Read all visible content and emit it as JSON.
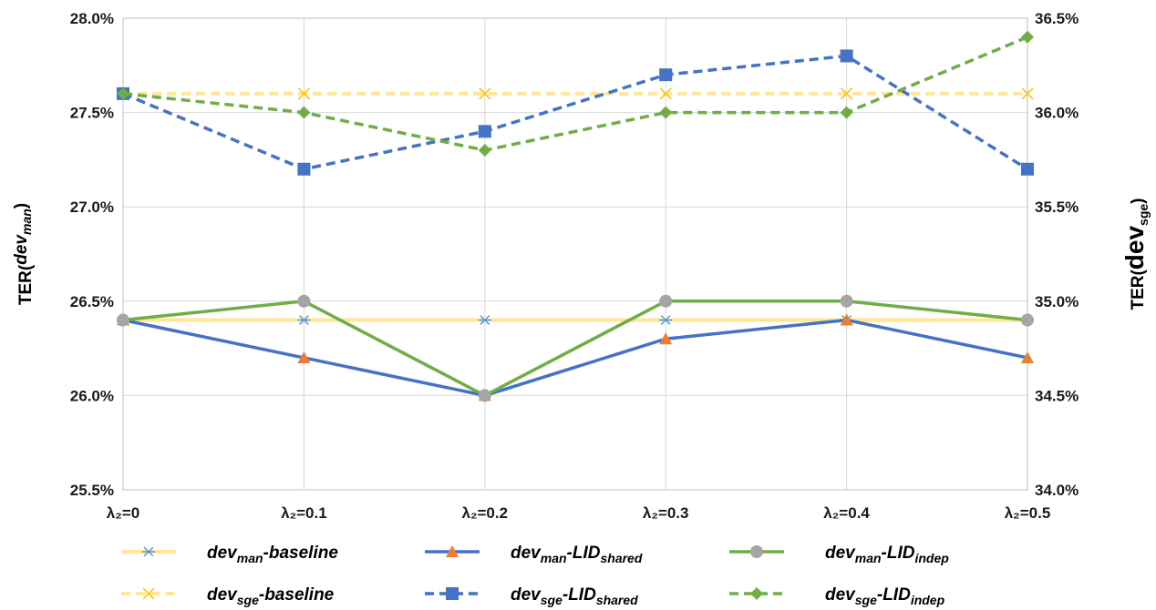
{
  "chart_data": {
    "type": "line",
    "categories": [
      "λ₂=0",
      "λ₂=0.1",
      "λ₂=0.2",
      "λ₂=0.3",
      "λ₂=0.4",
      "λ₂=0.5"
    ],
    "y_left": {
      "title": "TER(dev_man)",
      "title_parts": [
        {
          "t": "TER(",
          "sub": false,
          "italic": false
        },
        {
          "t": "dev",
          "sub": false,
          "italic": true
        },
        {
          "t": "man",
          "sub": true,
          "italic": true
        },
        {
          "t": ")",
          "sub": false,
          "italic": false
        }
      ],
      "ylim": [
        25.5,
        28.0
      ],
      "ticks": [
        "25.5%",
        "26.0%",
        "26.5%",
        "27.0%",
        "27.5%",
        "28.0%"
      ]
    },
    "y_right": {
      "title": "TER(dev_sge)",
      "title_parts": [
        {
          "t": "TER(",
          "sub": false,
          "big": false
        },
        {
          "t": "dev",
          "sub": false,
          "big": true
        },
        {
          "t": "sge",
          "sub": true,
          "big": false
        },
        {
          "t": ")",
          "sub": false,
          "big": false
        }
      ],
      "ylim": [
        34.0,
        36.5
      ],
      "ticks": [
        "34.0%",
        "34.5%",
        "35.0%",
        "35.5%",
        "36.0%",
        "36.5%"
      ]
    },
    "grid": true,
    "legend_position": "bottom",
    "series": [
      {
        "name": "dev_man-baseline",
        "label_parts": [
          "dev",
          "man",
          "-baseline",
          ""
        ],
        "axis": "left",
        "values": [
          26.4,
          26.4,
          26.4,
          26.4,
          26.4,
          26.4
        ],
        "color": "#FFE699",
        "marker": "asterisk",
        "marker_color": "#5B9BD5",
        "dashed": false
      },
      {
        "name": "dev_man-LID_shared",
        "label_parts": [
          "dev",
          "man",
          "-LID",
          "shared"
        ],
        "axis": "left",
        "values": [
          26.4,
          26.2,
          26.0,
          26.3,
          26.4,
          26.2
        ],
        "color": "#4472C4",
        "marker": "triangle",
        "marker_color": "#ED7D31",
        "dashed": false
      },
      {
        "name": "dev_man-LID_indep",
        "label_parts": [
          "dev",
          "man",
          "-LID",
          "indep"
        ],
        "axis": "left",
        "values": [
          26.4,
          26.5,
          26.0,
          26.5,
          26.5,
          26.4
        ],
        "color": "#70AD47",
        "marker": "circle",
        "marker_color": "#A5A5A5",
        "dashed": false
      },
      {
        "name": "dev_sge-baseline",
        "label_parts": [
          "dev",
          "sge",
          "-baseline",
          ""
        ],
        "axis": "right",
        "values": [
          36.1,
          36.1,
          36.1,
          36.1,
          36.1,
          36.1
        ],
        "color": "#FFE699",
        "marker": "x",
        "marker_color": "#FFC000",
        "dashed": true
      },
      {
        "name": "dev_sge-LID_shared",
        "label_parts": [
          "dev",
          "sge",
          "-LID",
          "shared"
        ],
        "axis": "right",
        "values": [
          36.1,
          35.7,
          35.9,
          36.2,
          36.3,
          35.7
        ],
        "color": "#4472C4",
        "marker": "square",
        "marker_color": "#4472C4",
        "dashed": true
      },
      {
        "name": "dev_sge-LID_indep",
        "label_parts": [
          "dev",
          "sge",
          "-LID",
          "indep"
        ],
        "axis": "right",
        "values": [
          36.1,
          36.0,
          35.8,
          36.0,
          36.0,
          36.4
        ],
        "color": "#70AD47",
        "marker": "diamond",
        "marker_color": "#70AD47",
        "dashed": true
      }
    ]
  }
}
